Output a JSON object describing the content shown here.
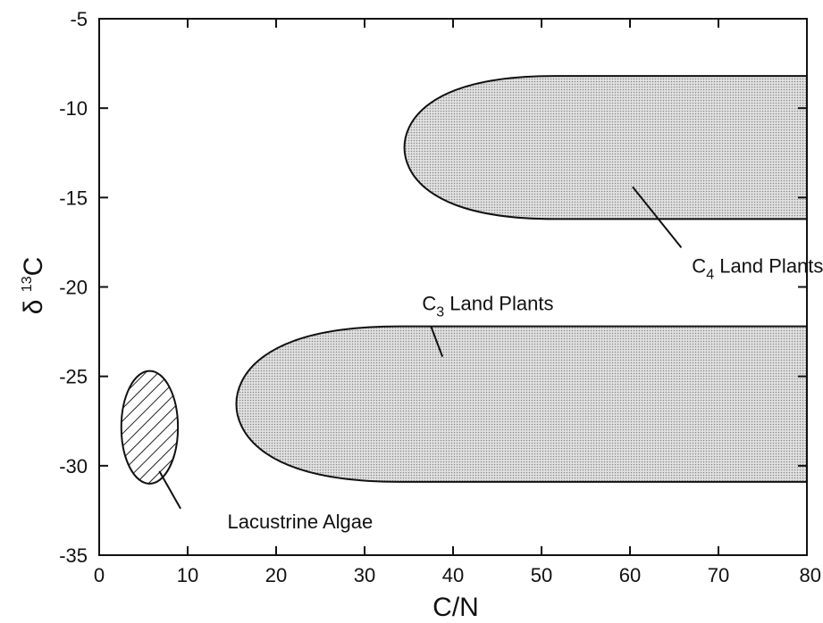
{
  "chart_data": {
    "type": "area",
    "xlabel": "C/N",
    "ylabel": {
      "prefix": "δ ",
      "sup": "13",
      "main": "C"
    },
    "xlim": [
      0,
      80
    ],
    "ylim": [
      -35,
      -5
    ],
    "xticks": [
      0,
      10,
      20,
      30,
      40,
      50,
      60,
      70,
      80
    ],
    "yticks": [
      -5,
      -10,
      -15,
      -20,
      -25,
      -30,
      -35
    ],
    "grid": false,
    "regions": [
      {
        "key": "c4",
        "label": {
          "main": "C",
          "sub": "4",
          "rest": " Land Plants"
        },
        "fill": "#d3d3d3",
        "pattern": "stipple",
        "x_min": 34.5,
        "x_max": 80,
        "y_top": -8.2,
        "y_bottom": -16.2,
        "label_pos": [
          67,
          -19.2
        ],
        "leader": [
          [
            60.3,
            -14.4
          ],
          [
            65.8,
            -17.8
          ]
        ]
      },
      {
        "key": "c3",
        "label": {
          "main": "C",
          "sub": "3",
          "rest": " Land Plants"
        },
        "fill": "#d3d3d3",
        "pattern": "stipple",
        "x_min": 15.5,
        "x_max": 80,
        "y_top": -22.2,
        "y_bottom": -30.9,
        "label_pos": [
          36.5,
          -21.3
        ],
        "leader": [
          [
            37.5,
            -22.2
          ],
          [
            38.8,
            -23.9
          ]
        ]
      },
      {
        "key": "algae",
        "label": {
          "main": "Lacustrine Algae",
          "sub": "",
          "rest": ""
        },
        "fill": "#ffffff",
        "pattern": "hatch",
        "x_center": 5.7,
        "y_center": -27.85,
        "x_radius": 3.2,
        "y_radius": 3.15,
        "label_pos": [
          14.5,
          -33.5
        ],
        "leader": [
          [
            6.8,
            -30.3
          ],
          [
            9.2,
            -32.4
          ]
        ]
      }
    ]
  }
}
